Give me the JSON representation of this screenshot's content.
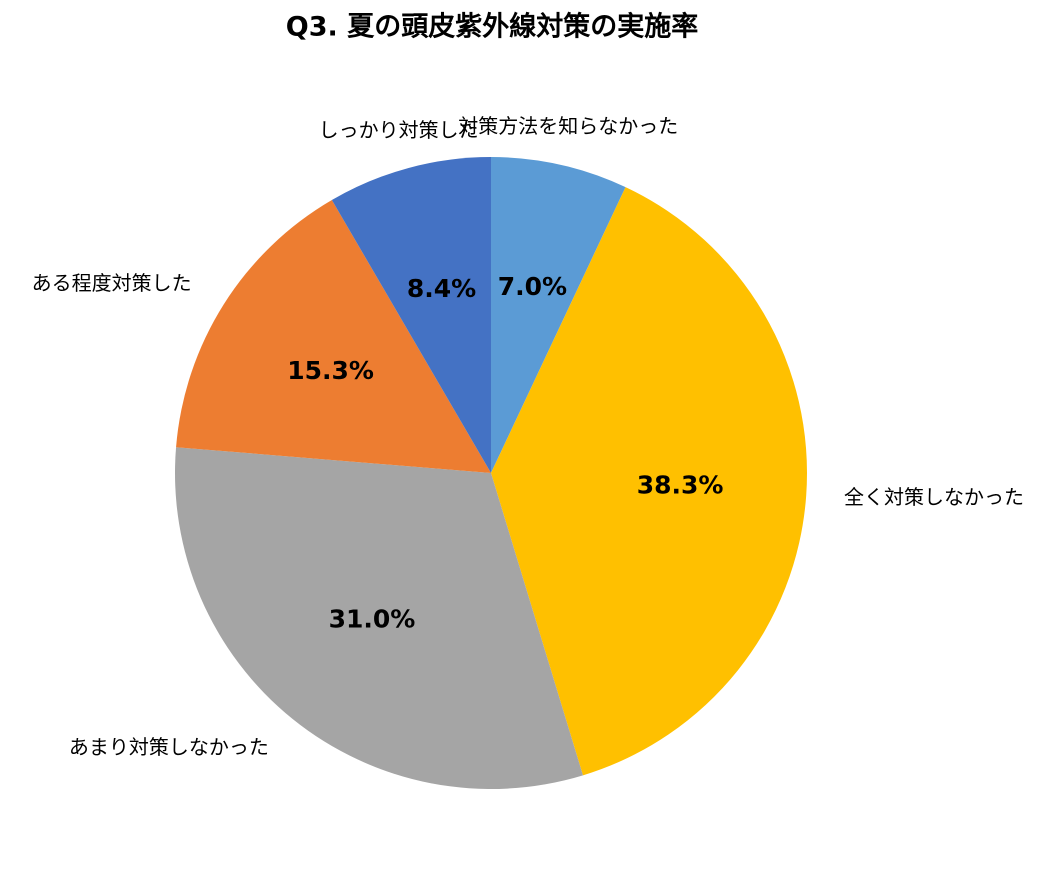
{
  "chart_data": {
    "type": "pie",
    "title": "Q3. 夏の頭皮紫外線対策の実施率",
    "categories": [
      "対策方法を知らなかった",
      "全く対策しなかった",
      "あまり対策しなかった",
      "ある程度対策した",
      "しっかり対策した"
    ],
    "values": [
      7.0,
      38.3,
      31.0,
      15.3,
      8.4
    ],
    "value_labels": [
      "7.0%",
      "38.3%",
      "31.0%",
      "15.3%",
      "8.4%"
    ],
    "colors": [
      "#5b9bd5",
      "#ffc000",
      "#a5a5a5",
      "#ed7d31",
      "#4472c4"
    ]
  }
}
